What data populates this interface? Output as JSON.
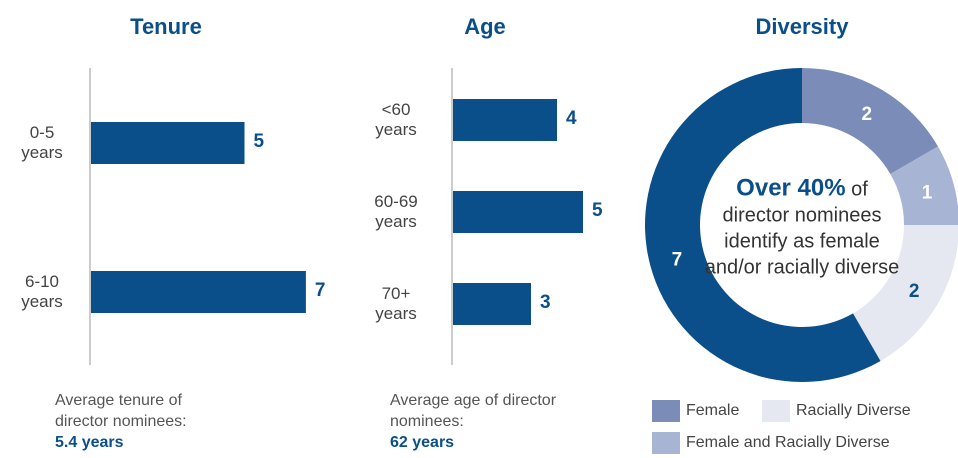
{
  "chart_data": [
    {
      "type": "bar",
      "orientation": "horizontal",
      "title": "Tenure",
      "categories": [
        "0-5 years",
        "6-10 years"
      ],
      "values": [
        5,
        7
      ],
      "color": "#0b4f8a",
      "note": "Average tenure of director nominees:",
      "note_value": "5.4 years"
    },
    {
      "type": "bar",
      "orientation": "horizontal",
      "title": "Age",
      "categories": [
        "<60 years",
        "60-69 years",
        "70+ years"
      ],
      "values": [
        4,
        5,
        3
      ],
      "color": "#0b4f8a",
      "note": "Average age of director nominees:",
      "note_value": "62 years"
    },
    {
      "type": "pie",
      "donut": true,
      "title": "Diversity",
      "categories": [
        "Female",
        "Female and Racially Diverse",
        "Racially Diverse",
        null
      ],
      "values": [
        2,
        1,
        2,
        7
      ],
      "colors": [
        "#7a8cb7",
        "#a8b4d3",
        "#e5e8f1",
        "#0b4f8a"
      ],
      "center_emphasis": "Over 40%",
      "center_text": "of director nominees identify as female and/or racially diverse"
    }
  ]
}
